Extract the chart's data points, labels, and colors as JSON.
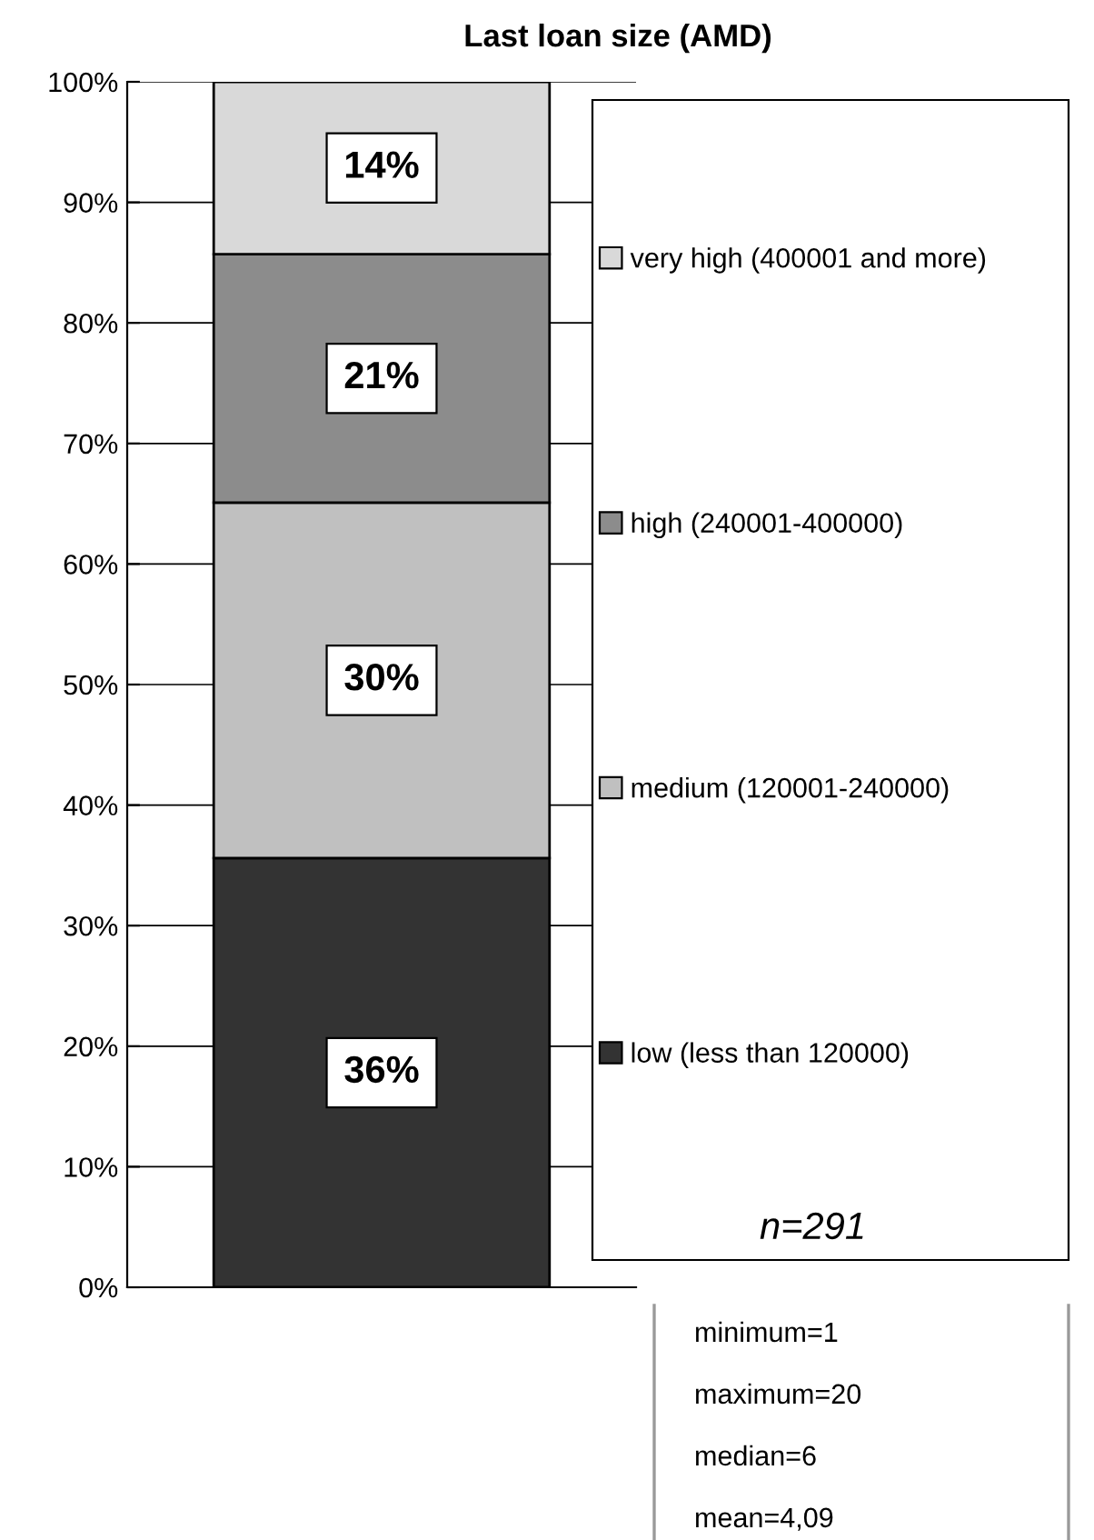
{
  "chart_data": {
    "type": "bar",
    "title": "Last loan size (AMD)",
    "stacked": true,
    "categories": [
      null
    ],
    "series": [
      {
        "name": "low (less than 120000)",
        "color": "#333333",
        "values": [
          35.6
        ],
        "value_labels": [
          "36%"
        ]
      },
      {
        "name": "medium (120001-240000)",
        "color": "#c0c0c0",
        "values": [
          29.5
        ],
        "value_labels": [
          "30%"
        ]
      },
      {
        "name": "high (240001-400000)",
        "color": "#8c8c8c",
        "values": [
          20.6
        ],
        "value_labels": [
          "21%"
        ]
      },
      {
        "name": "very high (400001 and more)",
        "color": "#d9d9d9",
        "values": [
          14.3
        ],
        "value_labels": [
          "14%"
        ]
      }
    ],
    "ylim": [
      0,
      100
    ],
    "yticks": [
      {
        "value": 0,
        "label": "0%"
      },
      {
        "value": 10,
        "label": "10%"
      },
      {
        "value": 20,
        "label": "20%"
      },
      {
        "value": 30,
        "label": "30%"
      },
      {
        "value": 40,
        "label": "40%"
      },
      {
        "value": 50,
        "label": "50%"
      },
      {
        "value": 60,
        "label": "60%"
      },
      {
        "value": 70,
        "label": "70%"
      },
      {
        "value": 80,
        "label": "80%"
      },
      {
        "value": 90,
        "label": "90%"
      },
      {
        "value": 100,
        "label": "100%"
      }
    ],
    "grid": "y",
    "legend": "right",
    "annotations": [
      "n=291",
      "minimum=1",
      "maximum=20",
      "median=6",
      "mean=4,09"
    ]
  }
}
